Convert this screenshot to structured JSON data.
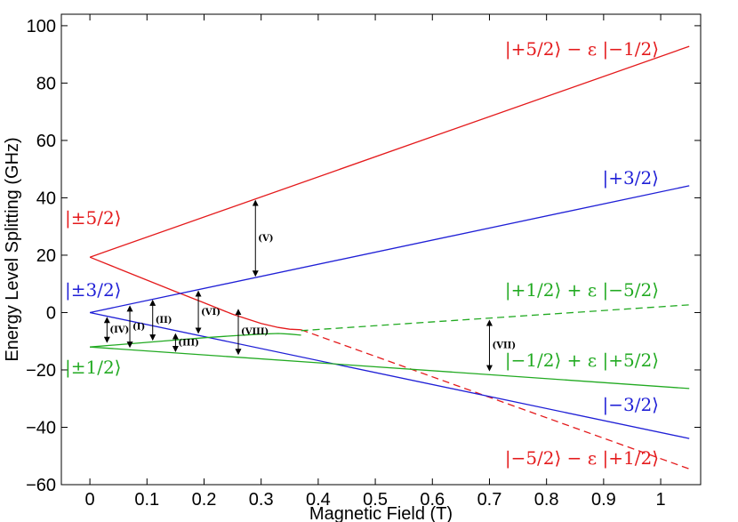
{
  "chart_data": {
    "type": "line",
    "title": "",
    "xlabel": "Magnetic Field (T)",
    "ylabel": "Energy Level Splitting (GHz)",
    "xlim": [
      -0.05,
      1.07
    ],
    "ylim": [
      -60,
      104
    ],
    "xticks": [
      0,
      0.1,
      0.2,
      0.3,
      0.4,
      0.5,
      0.6,
      0.7,
      0.8,
      0.9,
      1
    ],
    "xtick_labels": [
      "0",
      "0.1",
      "0.2",
      "0.3",
      "0.4",
      "0.5",
      "0.6",
      "0.7",
      "0.8",
      "0.9",
      "1"
    ],
    "yticks": [
      -60,
      -40,
      -20,
      0,
      20,
      40,
      60,
      80,
      100
    ],
    "ytick_labels": [
      "−60",
      "−40",
      "−20",
      "0",
      "20",
      "40",
      "60",
      "80",
      "100"
    ],
    "grid": false,
    "series": [
      {
        "key": "plus52",
        "color": "#e41a1c",
        "style": "solid",
        "x": [
          0,
          1.05
        ],
        "y": [
          19.3,
          92.8
        ]
      },
      {
        "key": "minus52_solid",
        "color": "#e41a1c",
        "style": "solid",
        "x": [
          0,
          0.05,
          0.1,
          0.15,
          0.2,
          0.25,
          0.3,
          0.33,
          0.35,
          0.37
        ],
        "y": [
          19.3,
          15.3,
          11.3,
          7.3,
          3.4,
          -0.6,
          -3.8,
          -5.2,
          -5.8,
          -6.0
        ]
      },
      {
        "key": "minus52_dashed",
        "color": "#e41a1c",
        "style": "dashed",
        "x": [
          0.37,
          1.05
        ],
        "y": [
          -6.0,
          -54.5
        ]
      },
      {
        "key": "plus32",
        "color": "#1f1fd6",
        "style": "solid",
        "x": [
          0,
          1.05
        ],
        "y": [
          0,
          44.2
        ]
      },
      {
        "key": "minus32",
        "color": "#1f1fd6",
        "style": "solid",
        "x": [
          0,
          1.05
        ],
        "y": [
          0,
          -43.9
        ]
      },
      {
        "key": "plus12_solid",
        "color": "#22aa22",
        "style": "solid",
        "x": [
          0,
          0.05,
          0.1,
          0.15,
          0.2,
          0.25,
          0.3,
          0.33,
          0.35,
          0.37
        ],
        "y": [
          -12,
          -11.2,
          -10.4,
          -9.6,
          -8.8,
          -8.1,
          -7.5,
          -7.3,
          -7.5,
          -7.9
        ]
      },
      {
        "key": "plus12_dashed",
        "color": "#22aa22",
        "style": "dashed",
        "x": [
          0.37,
          1.05
        ],
        "y": [
          -6.3,
          2.7
        ]
      },
      {
        "key": "minus12",
        "color": "#22aa22",
        "style": "solid",
        "x": [
          0,
          1.05
        ],
        "y": [
          -12,
          -26.5
        ]
      }
    ],
    "transitions": [
      {
        "label": "(I)",
        "x": 0.07,
        "y1": 2.7,
        "y2": -12.5
      },
      {
        "label": "(II)",
        "x": 0.11,
        "y1": 4.7,
        "y2": -10.0
      },
      {
        "label": "(III)",
        "x": 0.15,
        "y1": -7.0,
        "y2": -14.0
      },
      {
        "label": "(IV)",
        "x": 0.03,
        "y1": -1.3,
        "y2": -10.8
      },
      {
        "label": "(V)",
        "x": 0.29,
        "y1": 39.5,
        "y2": 12.3
      },
      {
        "label": "(VI)",
        "x": 0.19,
        "y1": 7.9,
        "y2": -7.6
      },
      {
        "label": "(VIII)",
        "x": 0.26,
        "y1": 1.5,
        "y2": -15.0
      },
      {
        "label": "(VII)",
        "x": 0.7,
        "y1": -2.3,
        "y2": -20.7
      }
    ],
    "state_labels": [
      {
        "text": "|±5/2⟩",
        "color": "#e41a1c"
      },
      {
        "text": "|±3/2⟩",
        "color": "#1f1fd6"
      },
      {
        "text": "|±1/2⟩",
        "color": "#22aa22"
      },
      {
        "text": "|+5/2⟩ − ε |−1/2⟩",
        "color": "#e41a1c"
      },
      {
        "text": "|+3/2⟩",
        "color": "#1f1fd6"
      },
      {
        "text": "|+1/2⟩ + ε |−5/2⟩",
        "color": "#22aa22"
      },
      {
        "text": "|−1/2⟩ + ε |+5/2⟩",
        "color": "#22aa22"
      },
      {
        "text": "|−3/2⟩",
        "color": "#1f1fd6"
      },
      {
        "text": "|−5/2⟩ − ε |+1/2⟩",
        "color": "#e41a1c"
      }
    ]
  }
}
